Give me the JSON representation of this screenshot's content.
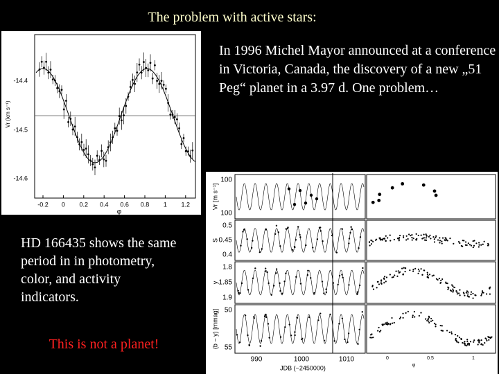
{
  "title": "The problem with active stars:",
  "intro": "In 1996 Michel Mayor announced at a conference in Victoria, Canada, the discovery of a new „51 Peg“ planet in a 3.97 d. One problem…",
  "note": "HD 166435 shows the same period in in photometry, color, and activity indicators.",
  "warning": "This is not a planet!",
  "figure_1": {
    "y_label": "Vr (km s⁻¹)",
    "x_label": "φ",
    "y_ticks": [
      "-14.4",
      "-14.5",
      "-14.6"
    ],
    "x_ticks": [
      "-0.2",
      "0",
      "0.2",
      "0.4",
      "0.6",
      "0.8",
      "1",
      "1.2"
    ]
  },
  "figure_2": {
    "panel_labels": [
      "Vr [m s⁻¹]",
      "S",
      "y",
      "(b − y) [mmag]"
    ],
    "panel_ticks": [
      [
        "100",
        "100"
      ],
      [
        "0.5",
        "0.45",
        "0.4"
      ],
      [
        "1.8",
        "1.85",
        "1.9"
      ],
      [
        "50",
        "55"
      ]
    ],
    "x_ticks": [
      "990",
      "1000",
      "1010"
    ],
    "x_label": "JDB (−2450000)",
    "phase_ticks": [
      "0",
      "0.5",
      "1"
    ],
    "phase_label": "φ"
  }
}
